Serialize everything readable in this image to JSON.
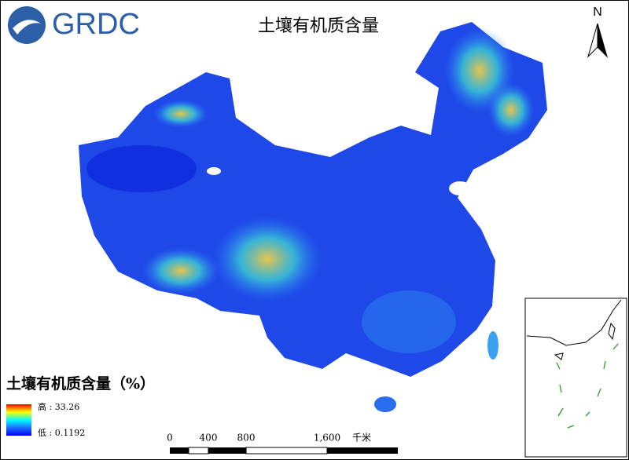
{
  "logo": {
    "text": "GRDC"
  },
  "title": "土壤有机质含量",
  "north_arrow": {
    "label": "N"
  },
  "legend": {
    "title": "土壤有机质含量（%）",
    "high": "高 : 33.26",
    "low": "低 : 0.1192"
  },
  "scale_bar": {
    "ticks": [
      "0",
      "400",
      "800",
      "1,600"
    ],
    "unit": "千米"
  }
}
